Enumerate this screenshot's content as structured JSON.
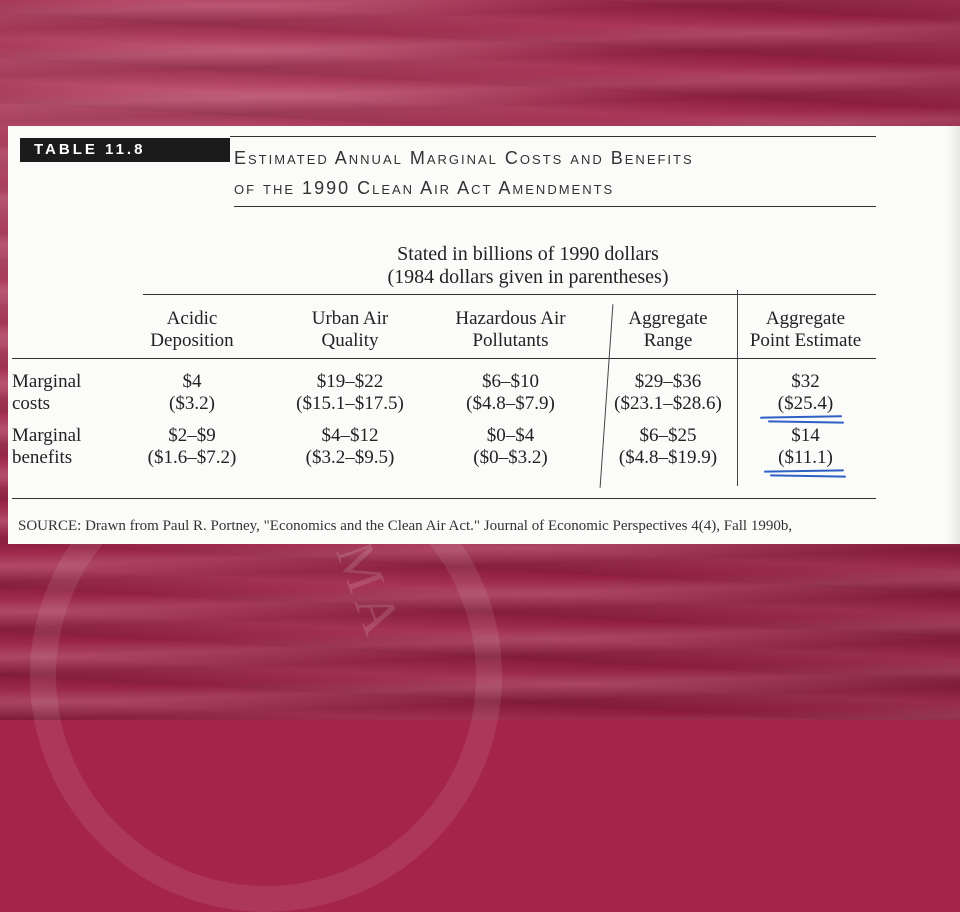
{
  "table": {
    "tag": "TABLE 11.8",
    "title_line1": "Estimated Annual Marginal Costs and Benefits",
    "title_line2": "of the 1990 Clean Air Act Amendments",
    "subtitle_line1": "Stated in billions of 1990 dollars",
    "subtitle_line2": "(1984 dollars given in parentheses)",
    "columns": [
      {
        "line1": "Acidic",
        "line2": "Deposition"
      },
      {
        "line1": "Urban Air",
        "line2": "Quality"
      },
      {
        "line1": "Hazardous Air",
        "line2": "Pollutants"
      },
      {
        "line1": "Aggregate",
        "line2": "Range"
      },
      {
        "line1": "Aggregate",
        "line2": "Point Estimate"
      }
    ],
    "rows": [
      {
        "label1": "Marginal",
        "label2": "costs",
        "values": [
          {
            "main": "$4",
            "paren": "($3.2)"
          },
          {
            "main": "$19–$22",
            "paren": "($15.1–$17.5)"
          },
          {
            "main": "$6–$10",
            "paren": "($4.8–$7.9)"
          },
          {
            "main": "$29–$36",
            "paren": "($23.1–$28.6)"
          },
          {
            "main": "$32",
            "paren": "($25.4)"
          }
        ]
      },
      {
        "label1": "Marginal",
        "label2": "benefits",
        "values": [
          {
            "main": "$2–$9",
            "paren": "($1.6–$7.2)"
          },
          {
            "main": "$4–$12",
            "paren": "($3.2–$9.5)"
          },
          {
            "main": "$0–$4",
            "paren": "($0–$3.2)"
          },
          {
            "main": "$6–$25",
            "paren": "($4.8–$19.9)"
          },
          {
            "main": "$14",
            "paren": "($11.1)"
          }
        ]
      }
    ],
    "source": "SOURCE: Drawn from Paul R. Portney, \"Economics and the Clean Air Act.\" Journal of Economic Perspectives 4(4), Fall 1990b,"
  },
  "colors": {
    "background": "#a5244a",
    "pen": "#2d5fc4"
  }
}
